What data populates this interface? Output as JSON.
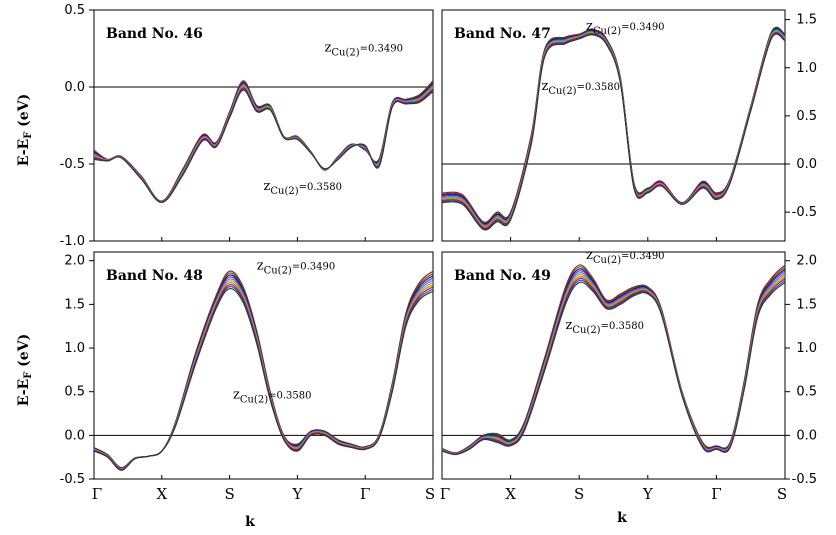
{
  "chart_data": [
    {
      "type": "line",
      "title": "Band No. 46",
      "ylabel": "E-E_F (eV)",
      "xlabel": "",
      "x_ticks": [
        "Γ",
        "X",
        "S",
        "Y",
        "Γ",
        "S"
      ],
      "ylim": [
        -1.0,
        0.5
      ],
      "y_ticks": [
        "-1.0",
        "-0.5",
        "0.0",
        "0.5"
      ],
      "y_axis_side": "left",
      "annotations": [
        {
          "text": "z",
          "sub": "Cu(2)",
          "value": "=0.3490",
          "at": [
            3.4,
            0.23
          ]
        },
        {
          "text": "z",
          "sub": "Cu(2)",
          "value": "=0.3580",
          "at": [
            2.5,
            -0.67
          ]
        }
      ],
      "series": [
        {
          "values_at_x": [
            0.0,
            0.2,
            0.4,
            0.7,
            1.0,
            1.3,
            1.6,
            1.8,
            2.0,
            2.2,
            2.4,
            2.6,
            2.8,
            3.0,
            3.2,
            3.4,
            3.6,
            3.8,
            4.0,
            4.2,
            4.4,
            4.6,
            4.8,
            5.0
          ],
          "values": [
            -0.41,
            -0.47,
            -0.45,
            -0.58,
            -0.74,
            -0.54,
            -0.31,
            -0.36,
            -0.16,
            0.04,
            -0.12,
            -0.12,
            -0.32,
            -0.32,
            -0.42,
            -0.54,
            -0.45,
            -0.37,
            -0.41,
            -0.47,
            -0.1,
            -0.08,
            -0.05,
            0.04
          ]
        },
        {
          "values_at_x": [
            0.0,
            0.2,
            0.4,
            0.7,
            1.0,
            1.3,
            1.6,
            1.8,
            2.0,
            2.2,
            2.4,
            2.6,
            2.8,
            3.0,
            3.2,
            3.4,
            3.6,
            3.8,
            4.0,
            4.2,
            4.4,
            4.6,
            4.8,
            5.0
          ],
          "values": [
            -0.47,
            -0.48,
            -0.46,
            -0.6,
            -0.75,
            -0.58,
            -0.35,
            -0.39,
            -0.2,
            -0.02,
            -0.16,
            -0.15,
            -0.33,
            -0.34,
            -0.43,
            -0.53,
            -0.47,
            -0.39,
            -0.38,
            -0.52,
            -0.13,
            -0.11,
            -0.1,
            -0.03
          ]
        }
      ]
    },
    {
      "type": "line",
      "title": "Band No. 47",
      "ylabel": "",
      "xlabel": "",
      "x_ticks": [
        "Γ",
        "X",
        "S",
        "Y",
        "Γ",
        "S"
      ],
      "ylim": [
        -0.8,
        1.6
      ],
      "y_ticks": [
        "-0.5",
        "0.0",
        "0.5",
        "1.0",
        "1.5"
      ],
      "y_axis_side": "right",
      "annotations": [
        {
          "text": "z",
          "sub": "Cu(2)",
          "value": "=0.3490",
          "at": [
            2.1,
            1.39
          ]
        },
        {
          "text": "z",
          "sub": "Cu(2)",
          "value": "=0.3580",
          "at": [
            1.45,
            0.77
          ]
        }
      ],
      "series": [
        {
          "values_at_x": [
            0.0,
            0.3,
            0.6,
            0.8,
            1.0,
            1.3,
            1.5,
            1.8,
            2.0,
            2.2,
            2.4,
            2.6,
            2.8,
            3.0,
            3.2,
            3.5,
            3.8,
            4.0,
            4.2,
            4.5,
            4.8,
            5.0
          ],
          "values": [
            -0.3,
            -0.32,
            -0.6,
            -0.5,
            -0.5,
            0.3,
            1.2,
            1.32,
            1.35,
            1.4,
            1.3,
            0.9,
            -0.2,
            -0.25,
            -0.18,
            -0.4,
            -0.18,
            -0.3,
            -0.15,
            0.6,
            1.37,
            1.35
          ]
        },
        {
          "values_at_x": [
            0.0,
            0.3,
            0.6,
            0.8,
            1.0,
            1.3,
            1.5,
            1.8,
            2.0,
            2.2,
            2.4,
            2.6,
            2.8,
            3.0,
            3.2,
            3.5,
            3.8,
            4.0,
            4.2,
            4.5,
            4.8,
            5.0
          ],
          "values": [
            -0.4,
            -0.42,
            -0.68,
            -0.6,
            -0.58,
            0.2,
            1.12,
            1.25,
            1.3,
            1.34,
            1.24,
            0.84,
            -0.26,
            -0.3,
            -0.23,
            -0.42,
            -0.25,
            -0.37,
            -0.2,
            0.55,
            1.3,
            1.28
          ]
        }
      ]
    },
    {
      "type": "line",
      "title": "Band No. 48",
      "ylabel": "E-E_F (eV)",
      "xlabel": "k",
      "x_ticks": [
        "Γ",
        "X",
        "S",
        "Y",
        "Γ",
        "S"
      ],
      "ylim": [
        -0.5,
        2.1
      ],
      "y_ticks": [
        "-0.5",
        "0.0",
        "0.5",
        "1.0",
        "1.5",
        "2.0"
      ],
      "y_axis_side": "left",
      "annotations": [
        {
          "text": "z",
          "sub": "Cu(2)",
          "value": "=0.3490",
          "at": [
            2.4,
            1.9
          ]
        },
        {
          "text": "z",
          "sub": "Cu(2)",
          "value": "=0.3580",
          "at": [
            2.05,
            0.42
          ]
        }
      ],
      "series": [
        {
          "values_at_x": [
            0.0,
            0.2,
            0.4,
            0.6,
            0.8,
            1.0,
            1.2,
            1.5,
            1.8,
            2.0,
            2.2,
            2.4,
            2.6,
            2.8,
            3.0,
            3.2,
            3.4,
            3.6,
            3.8,
            4.0,
            4.2,
            4.4,
            4.6,
            4.8,
            5.0
          ],
          "values": [
            -0.14,
            -0.22,
            -0.37,
            -0.26,
            -0.24,
            -0.18,
            0.15,
            0.95,
            1.6,
            1.88,
            1.7,
            1.2,
            0.5,
            0.0,
            -0.1,
            0.05,
            0.05,
            -0.05,
            -0.1,
            -0.13,
            0.0,
            0.6,
            1.4,
            1.75,
            1.88
          ]
        },
        {
          "values_at_x": [
            0.0,
            0.2,
            0.4,
            0.6,
            0.8,
            1.0,
            1.2,
            1.5,
            1.8,
            2.0,
            2.2,
            2.4,
            2.6,
            2.8,
            3.0,
            3.2,
            3.4,
            3.6,
            3.8,
            4.0,
            4.2,
            4.4,
            4.6,
            4.8,
            5.0
          ],
          "values": [
            -0.18,
            -0.25,
            -0.4,
            -0.27,
            -0.24,
            -0.18,
            0.1,
            0.82,
            1.45,
            1.68,
            1.52,
            1.05,
            0.4,
            -0.05,
            -0.18,
            0.0,
            0.0,
            -0.1,
            -0.14,
            -0.16,
            -0.04,
            0.5,
            1.25,
            1.55,
            1.65
          ]
        }
      ]
    },
    {
      "type": "line",
      "title": "Band No. 49",
      "ylabel": "",
      "xlabel": "k",
      "x_ticks": [
        "Γ",
        "X",
        "S",
        "Y",
        "Γ",
        "S"
      ],
      "ylim": [
        -0.5,
        2.1
      ],
      "y_ticks": [
        "-0.5",
        "0.0",
        "0.5",
        "1.0",
        "1.5",
        "2.0"
      ],
      "y_axis_side": "right",
      "annotations": [
        {
          "text": "z",
          "sub": "Cu(2)",
          "value": "=0.3490",
          "at": [
            2.1,
            2.02
          ]
        },
        {
          "text": "z",
          "sub": "Cu(2)",
          "value": "=0.3580",
          "at": [
            1.8,
            1.22
          ]
        }
      ],
      "series": [
        {
          "values_at_x": [
            0.0,
            0.2,
            0.4,
            0.6,
            0.8,
            1.0,
            1.2,
            1.5,
            1.8,
            2.0,
            2.2,
            2.4,
            2.6,
            2.8,
            3.0,
            3.2,
            3.5,
            3.8,
            4.0,
            4.2,
            4.4,
            4.6,
            4.8,
            5.0
          ],
          "values": [
            -0.15,
            -0.2,
            -0.12,
            0.0,
            0.02,
            -0.05,
            0.15,
            0.9,
            1.7,
            1.95,
            1.8,
            1.55,
            1.62,
            1.7,
            1.7,
            1.45,
            0.5,
            -0.08,
            -0.12,
            -0.08,
            0.6,
            1.5,
            1.8,
            1.95
          ]
        },
        {
          "values_at_x": [
            0.0,
            0.2,
            0.4,
            0.6,
            0.8,
            1.0,
            1.2,
            1.5,
            1.8,
            2.0,
            2.2,
            2.4,
            2.6,
            2.8,
            3.0,
            3.2,
            3.5,
            3.8,
            4.0,
            4.2,
            4.4,
            4.6,
            4.8,
            5.0
          ],
          "values": [
            -0.18,
            -0.22,
            -0.16,
            -0.05,
            -0.08,
            -0.12,
            0.05,
            0.75,
            1.5,
            1.75,
            1.65,
            1.45,
            1.5,
            1.6,
            1.62,
            1.38,
            0.45,
            -0.14,
            -0.16,
            -0.14,
            0.5,
            1.35,
            1.62,
            1.75
          ]
        }
      ]
    }
  ],
  "colors": {
    "curves": [
      "#cc0000",
      "#008800",
      "#0000cc",
      "#cc00cc",
      "#00aaaa",
      "#aaaa00",
      "#ff6600",
      "#8800cc",
      "#006666",
      "#333333"
    ],
    "axis": "#000000"
  }
}
